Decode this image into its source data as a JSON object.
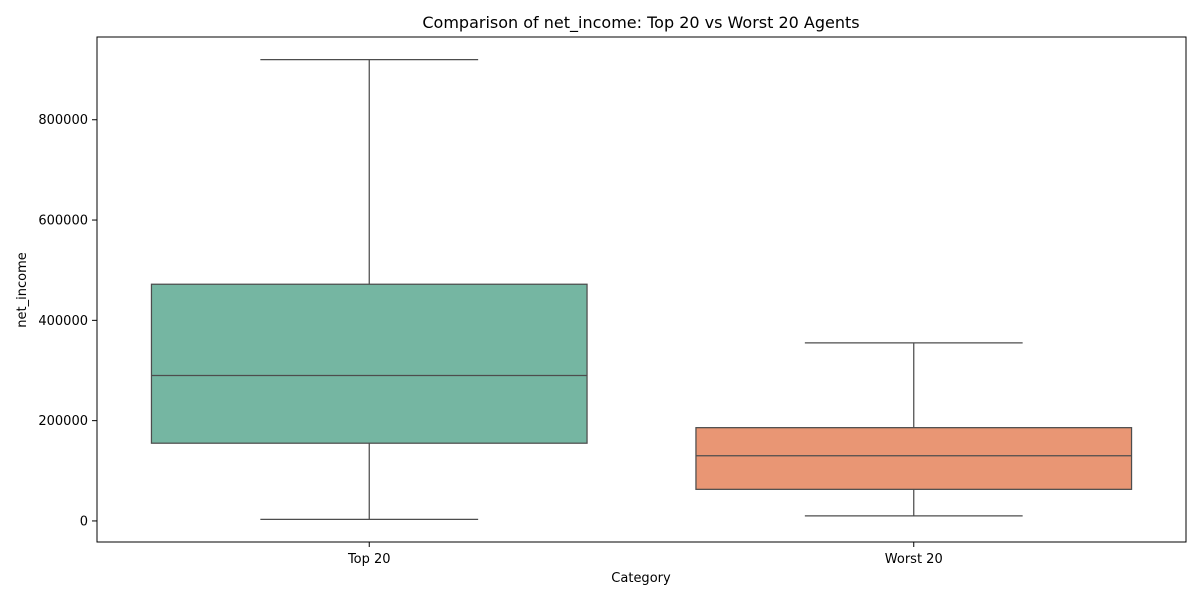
{
  "chart_data": {
    "type": "box",
    "title": "Comparison of net_income: Top 20 vs Worst 20 Agents",
    "xlabel": "Category",
    "ylabel": "net_income",
    "categories": [
      "Top 20",
      "Worst 20"
    ],
    "y_ticks": [
      0,
      200000,
      400000,
      600000,
      800000
    ],
    "ylim": [
      -42000,
      965000
    ],
    "grid": false,
    "legend": "none",
    "boxes": [
      {
        "category": "Top 20",
        "whisker_low": 3000,
        "q1": 155000,
        "median": 290000,
        "q3": 472000,
        "whisker_high": 920000,
        "color": "#75b6a2"
      },
      {
        "category": "Worst 20",
        "whisker_low": 10000,
        "q1": 63000,
        "median": 130000,
        "q3": 186000,
        "whisker_high": 355000,
        "color": "#e99674"
      }
    ],
    "line_color": "#4d4d4d"
  }
}
